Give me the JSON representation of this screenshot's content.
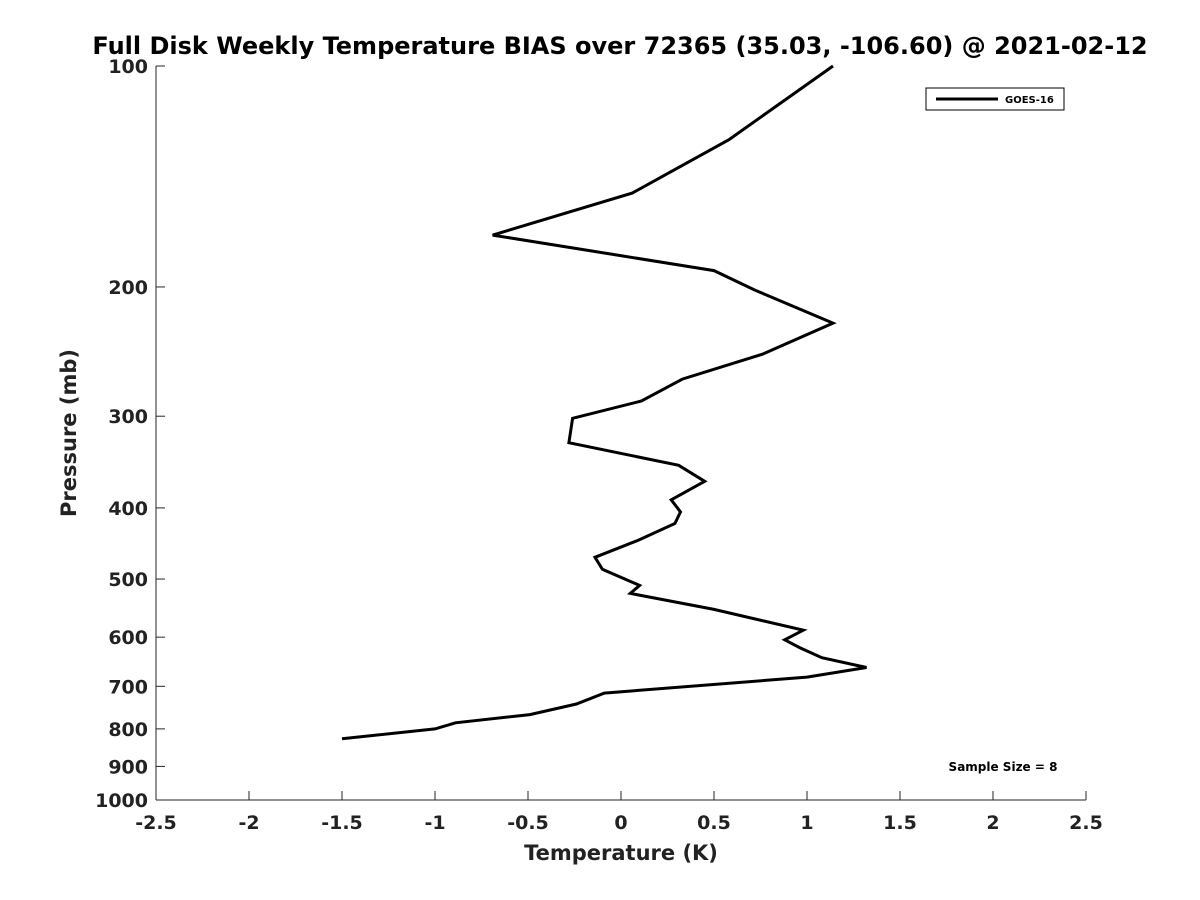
{
  "chart_data": {
    "type": "line",
    "title": "Full Disk Weekly Temperature BIAS over 72365 (35.03, -106.60) @ 2021-02-12",
    "xlabel": "Temperature (K)",
    "ylabel": "Pressure (mb)",
    "xlim": [
      -2.5,
      2.5
    ],
    "ylim": [
      100,
      1000
    ],
    "y_scale": "log",
    "y_reversed": true,
    "x_ticks": [
      -2.5,
      -2,
      -1.5,
      -1,
      -0.5,
      0,
      0.5,
      1,
      1.5,
      2,
      2.5
    ],
    "x_tick_labels": [
      "-2.5",
      "-2",
      "-1.5",
      "-1",
      "-0.5",
      "0",
      "0.5",
      "1",
      "1.5",
      "2",
      "2.5"
    ],
    "y_ticks": [
      100,
      200,
      300,
      400,
      500,
      600,
      700,
      800,
      900,
      1000
    ],
    "y_tick_labels": [
      "100",
      "200",
      "300",
      "400",
      "500",
      "600",
      "700",
      "800",
      "900",
      "1000"
    ],
    "grid": false,
    "legend_position": "top-right",
    "series": [
      {
        "name": "GOES-16",
        "color": "#000000",
        "x": [
          1.14,
          0.58,
          0.06,
          -0.69,
          0.5,
          0.72,
          1.14,
          0.76,
          0.33,
          0.11,
          -0.26,
          -0.28,
          0.31,
          0.45,
          0.27,
          0.32,
          0.29,
          0.09,
          -0.14,
          -0.1,
          0.1,
          0.05,
          0.5,
          0.98,
          0.88,
          0.96,
          1.08,
          1.32,
          1.0,
          -0.09,
          -0.24,
          -0.49,
          -0.89,
          -1.0,
          -1.5
        ],
        "y": [
          100,
          126,
          149,
          170,
          190,
          202,
          224,
          247,
          267,
          286,
          302,
          326,
          350,
          368,
          390,
          405,
          420,
          443,
          467,
          485,
          510,
          523,
          550,
          587,
          605,
          620,
          640,
          660,
          680,
          715,
          740,
          765,
          785,
          800,
          825
        ]
      }
    ],
    "annotations": [
      "Sample Size = 8"
    ]
  }
}
